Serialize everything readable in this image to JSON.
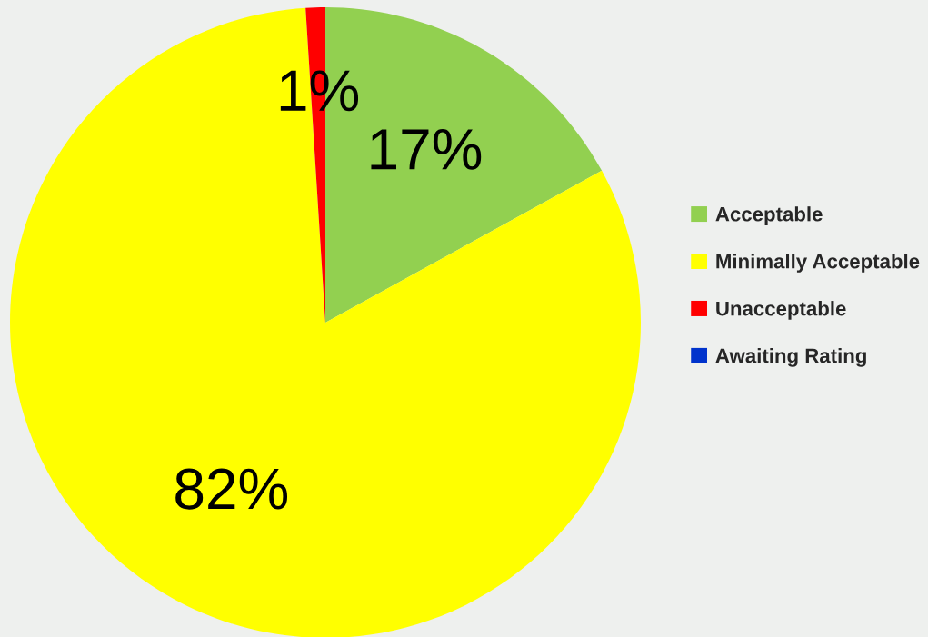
{
  "chart_data": {
    "type": "pie",
    "categories": [
      "Acceptable",
      "Minimally Acceptable",
      "Unacceptable",
      "Awaiting Rating"
    ],
    "values": [
      17,
      82,
      1,
      0
    ],
    "colors": [
      "#92d050",
      "#ffff00",
      "#ff0000",
      "#0033cc"
    ],
    "value_labels": [
      "17%",
      "82%",
      "1%",
      null
    ],
    "legend": "right"
  }
}
